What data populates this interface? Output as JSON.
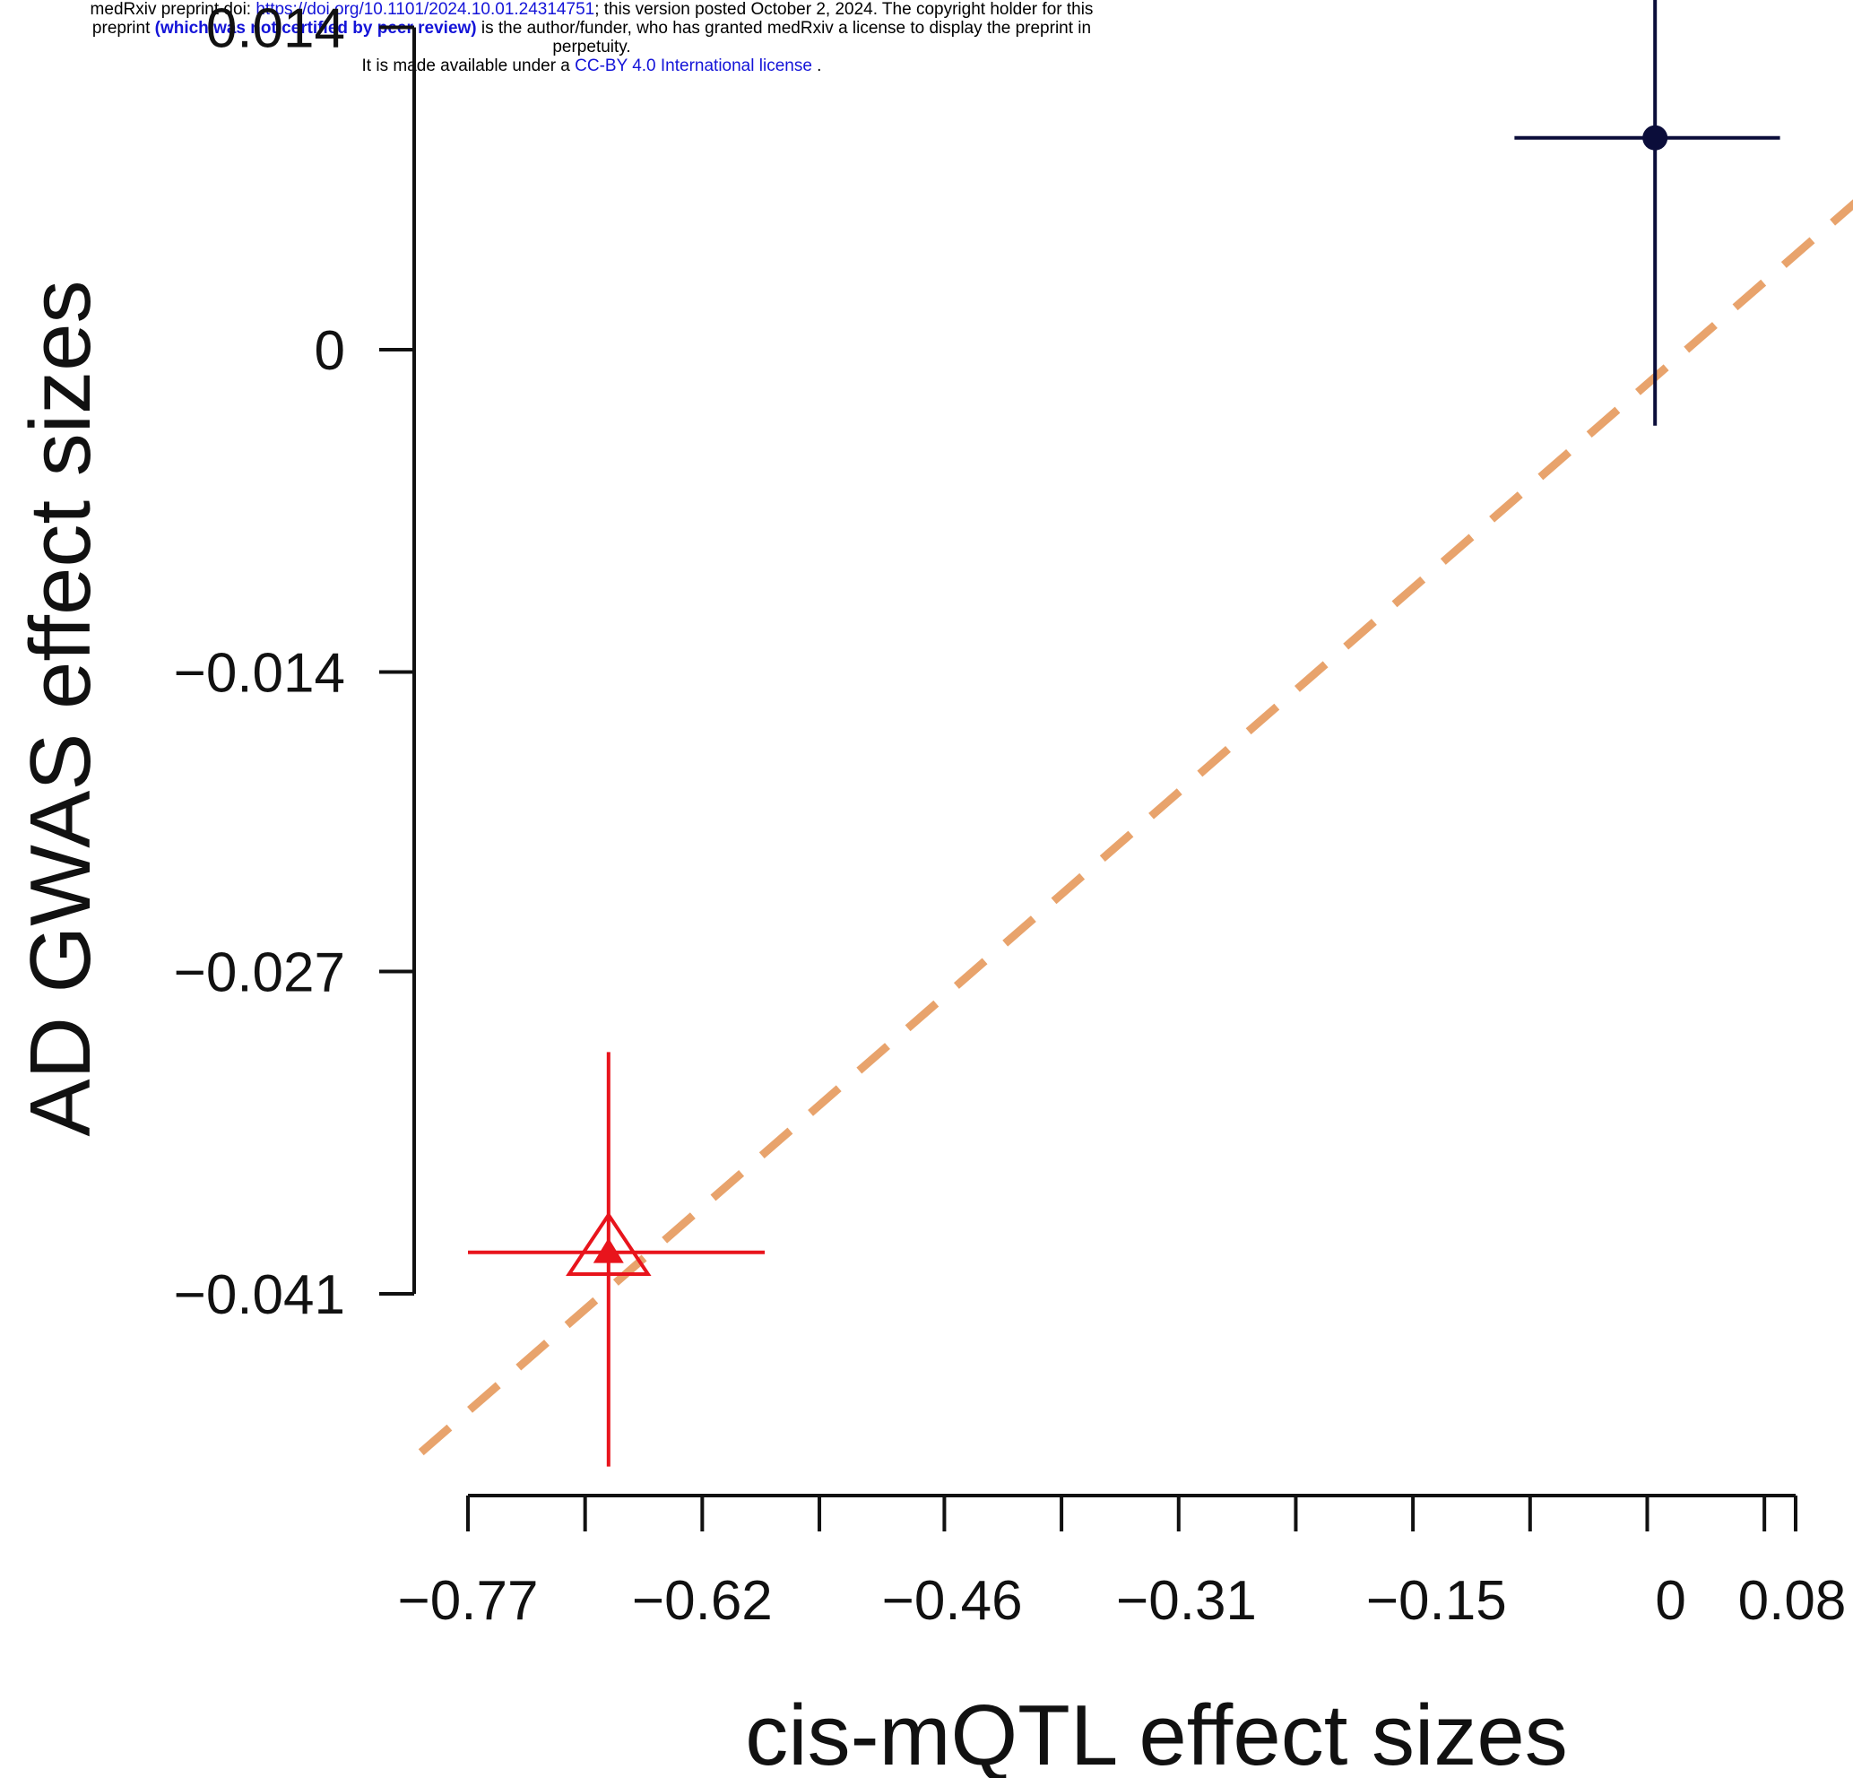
{
  "header": {
    "line1_prefix": "medRxiv preprint doi: ",
    "doi_link": "https://doi.org/10.1101/2024.10.01.24314751",
    "line1_suffix": "; this version posted October 2, 2024. The copyright holder for this",
    "line2_prefix": "preprint ",
    "peer_review": "(which was not certified by peer review)",
    "line2_suffix": " is the author/funder, who has granted medRxiv a license to display the preprint in",
    "line3": "perpetuity.",
    "line4_prefix": "It is made available under a ",
    "license_link": "CC-BY 4.0 International license",
    "line4_suffix": " ."
  },
  "chart_data": {
    "type": "scatter",
    "xlabel": "cis-mQTL effect sizes",
    "ylabel": "AD GWAS effect sizes",
    "x_ticks": [
      -0.77,
      -0.62,
      -0.46,
      -0.31,
      -0.15,
      0,
      0.08
    ],
    "x_tick_labels": [
      "−0.77",
      "−0.62",
      "−0.46",
      "−0.31",
      "−0.15",
      "0",
      "0.08"
    ],
    "x_minor_ticks": [
      -0.77,
      -0.695,
      -0.62,
      -0.545,
      -0.465,
      -0.39,
      -0.315,
      -0.24,
      -0.165,
      -0.09,
      -0.015,
      0.06
    ],
    "y_ticks": [
      0.014,
      0,
      -0.014,
      -0.027,
      -0.041
    ],
    "y_tick_labels": [
      "0.014",
      "0",
      "−0.014",
      "−0.027",
      "−0.041"
    ],
    "points": [
      {
        "x": -0.01,
        "y": 0.0092,
        "x_low": -0.1,
        "x_high": 0.07,
        "y_low": -0.0033,
        "y_high": 0.0155,
        "marker": "circle",
        "color": "#0b0d3a"
      },
      {
        "x": -0.68,
        "y": -0.0392,
        "x_low": -0.77,
        "x_high": -0.58,
        "y_low": -0.0485,
        "y_high": -0.0305,
        "marker": "triangle",
        "color": "#e8141c"
      }
    ],
    "fit_line": {
      "slope": 0.0591,
      "intercept": -0.0006,
      "x_from": -0.8,
      "x_to": 0.16,
      "style": "dashed",
      "color": "#e8a36c"
    },
    "grid": false
  }
}
